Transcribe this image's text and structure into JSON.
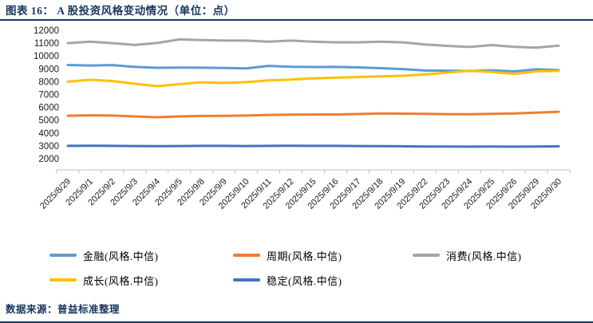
{
  "header": {
    "title": "图表 16： A 股投资风格变动情况（单位：点）"
  },
  "footer": {
    "source": "数据来源：普益标准整理"
  },
  "theme": {
    "accent_navy": "#17365D",
    "axis_line_gray": "#BFBFBF",
    "axis_text": "#1a1a1a"
  },
  "chart_data": {
    "type": "line",
    "title": "A 股投资风格变动情况",
    "unit": "点",
    "xlabel": "",
    "ylabel": "",
    "ylim": [
      2000,
      12000
    ],
    "y_ticks": [
      2000,
      3000,
      4000,
      5000,
      6000,
      7000,
      8000,
      9000,
      10000,
      11000,
      12000
    ],
    "grid": false,
    "legend_position": "bottom",
    "categories": [
      "2025/8/29",
      "2025/9/1",
      "2025/9/2",
      "2025/9/3",
      "2025/9/4",
      "2025/9/5",
      "2025/9/8",
      "2025/9/9",
      "2025/9/10",
      "2025/9/11",
      "2025/9/12",
      "2025/9/15",
      "2025/9/16",
      "2025/9/17",
      "2025/9/18",
      "2025/9/19",
      "2025/9/22",
      "2025/9/23",
      "2025/9/24",
      "2025/9/25",
      "2025/9/26",
      "2025/9/29",
      "2025/9/30"
    ],
    "series": [
      {
        "name": "金融(风格.中信)",
        "color": "#5B9BD5",
        "values": [
          9300,
          9260,
          9290,
          9150,
          9080,
          9100,
          9090,
          9060,
          9040,
          9230,
          9160,
          9140,
          9150,
          9110,
          9050,
          8980,
          8870,
          8860,
          8830,
          8890,
          8800,
          8960,
          8900
        ]
      },
      {
        "name": "周期(风格.中信)",
        "color": "#ED7D31",
        "values": [
          5350,
          5380,
          5360,
          5290,
          5230,
          5290,
          5330,
          5340,
          5360,
          5410,
          5430,
          5440,
          5450,
          5480,
          5530,
          5510,
          5490,
          5470,
          5460,
          5490,
          5530,
          5590,
          5660
        ]
      },
      {
        "name": "消费(风格.中信)",
        "color": "#A5A5A5",
        "values": [
          11000,
          11120,
          11000,
          10860,
          11010,
          11290,
          11240,
          11200,
          11200,
          11110,
          11200,
          11110,
          11060,
          11060,
          11110,
          11060,
          10900,
          10790,
          10700,
          10850,
          10710,
          10650,
          10810
        ]
      },
      {
        "name": "成长(风格.中信)",
        "color": "#FFC000",
        "values": [
          8000,
          8150,
          8050,
          7840,
          7650,
          7810,
          7950,
          7900,
          7960,
          8100,
          8160,
          8260,
          8310,
          8360,
          8410,
          8460,
          8560,
          8700,
          8860,
          8750,
          8600,
          8800,
          8830
        ]
      },
      {
        "name": "稳定(风格.中信)",
        "color": "#4472C4",
        "values": [
          3000,
          3010,
          3000,
          2990,
          2980,
          2990,
          3000,
          3000,
          2990,
          3000,
          3010,
          3000,
          3000,
          2990,
          2980,
          2970,
          2950,
          2950,
          2940,
          2950,
          2940,
          2950,
          2960
        ]
      }
    ]
  }
}
